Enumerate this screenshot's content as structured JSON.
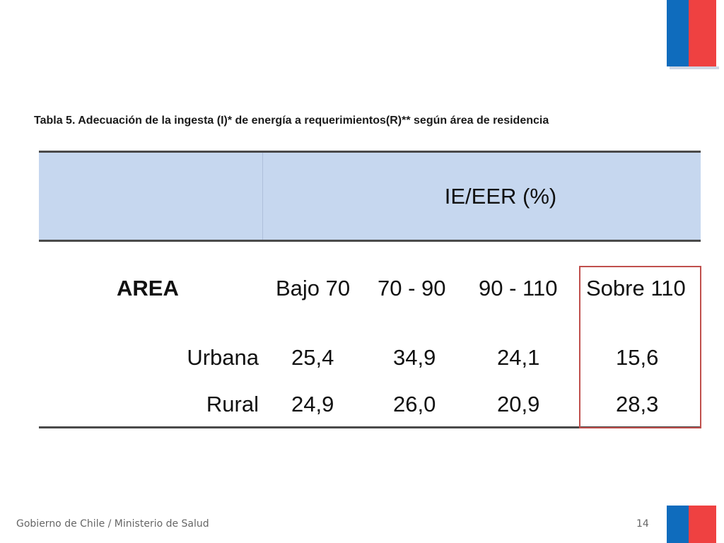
{
  "caption": "Tabla 5. Adecuación de la ingesta (I)* de energía a requerimientos(R)** según área de residencia",
  "table": {
    "group_header": "IE/EER (%)",
    "row_header": "AREA",
    "columns": [
      "Bajo 70",
      "70 - 90",
      "90 - 110",
      "Sobre 110"
    ],
    "rows": [
      {
        "area": "Urbana",
        "values": [
          "25,4",
          "34,9",
          "24,1",
          "15,6"
        ]
      },
      {
        "area": "Rural",
        "values": [
          "24,9",
          "26,0",
          "20,9",
          "28,3"
        ]
      }
    ],
    "highlighted_column": "Sobre 110"
  },
  "footer": {
    "source": "Gobierno de Chile / Ministerio de Salud",
    "page_number": "14"
  },
  "colors": {
    "flag_blue": "#0f6cbd",
    "flag_red": "#ef4141",
    "header_band": "#c6d7ef",
    "highlight_border": "#c0504d"
  }
}
